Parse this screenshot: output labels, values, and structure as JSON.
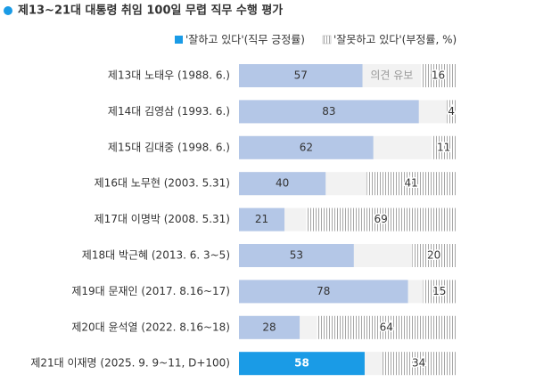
{
  "chart_data": {
    "type": "bar",
    "orientation": "horizontal",
    "stacked": true,
    "title": "제13~21대 대통령 취임 100일 무렵 직무 수행 평가",
    "categories": [
      "제13대 노태우 (1988. 6.)",
      "제14대 김영삼 (1993. 6.)",
      "제15대 김대중 (1998. 6.)",
      "제16대 노무현 (2003. 5.31)",
      "제17대 이명박 (2008. 5.31)",
      "제18대 박근혜 (2013. 6. 3~5)",
      "제19대 문재인 (2017. 8.16~17)",
      "제20대 윤석열 (2022. 8.16~18)",
      "제21대 이재명 (2025. 9. 9~11, D+100)"
    ],
    "series": [
      {
        "name": "'잘하고 있다'(직무 긍정률)",
        "color": "#b4c7e7",
        "highlight_color": "#1a9be6",
        "values": [
          57,
          83,
          62,
          40,
          21,
          53,
          78,
          28,
          58
        ]
      },
      {
        "name": "'잘못하고 있다'(부정률, %)",
        "color": "#a6a6a6",
        "values": [
          16,
          4,
          11,
          41,
          69,
          20,
          15,
          64,
          34
        ]
      }
    ],
    "highlight_category": "제21대 이재명 (2025. 9. 9~11, D+100)",
    "annotation": "의견 유보",
    "xlim": [
      0,
      100
    ],
    "background_color": "#f2f2f2"
  }
}
